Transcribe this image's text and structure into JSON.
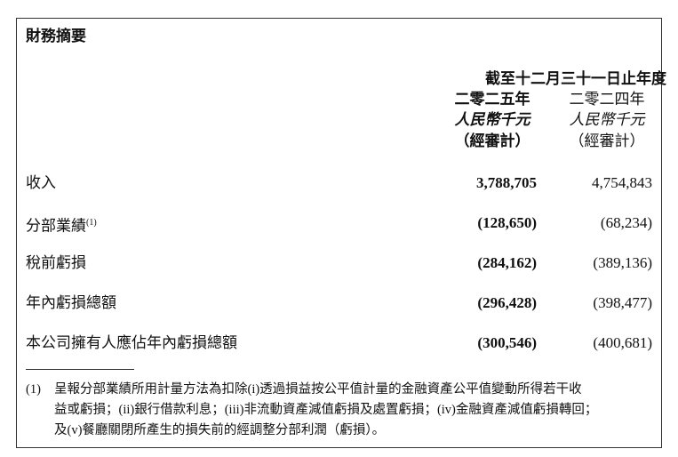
{
  "title": "財務摘要",
  "header": {
    "period": "截至十二月三十一日止年度",
    "columns": [
      {
        "year": "二零二五年",
        "currency": "人民幣千元",
        "audit": "（經審計）"
      },
      {
        "year": "二零二四年",
        "currency": "人民幣千元",
        "audit": "（經審計）"
      }
    ]
  },
  "rows": [
    {
      "label": "收入",
      "values": [
        "3,788,705",
        "4,754,843"
      ]
    },
    {
      "label": "分部業績",
      "note": "(1)",
      "values": [
        "(128,650)",
        "(68,234)"
      ]
    },
    {
      "label": "稅前虧損",
      "values": [
        "(284,162)",
        "(389,136)"
      ]
    },
    {
      "label": "年內虧損總額",
      "values": [
        "(296,428)",
        "(398,477)"
      ]
    },
    {
      "label": "本公司擁有人應佔年內虧損總額",
      "values": [
        "(300,546)",
        "(400,681)"
      ]
    }
  ],
  "footnote": {
    "marker": "(1)",
    "lines": [
      "呈報分部業績所用計量方法為扣除(i)透過損益按公平值計量的金融資產公平值變動所得若干收",
      "益或虧損；(ii)銀行借款利息；(iii)非流動資產減值虧損及處置虧損；(iv)金融資產減值虧損轉回；",
      "及(v)餐廳關閉所產生的損失前的經調整分部利潤（虧損）。"
    ]
  }
}
